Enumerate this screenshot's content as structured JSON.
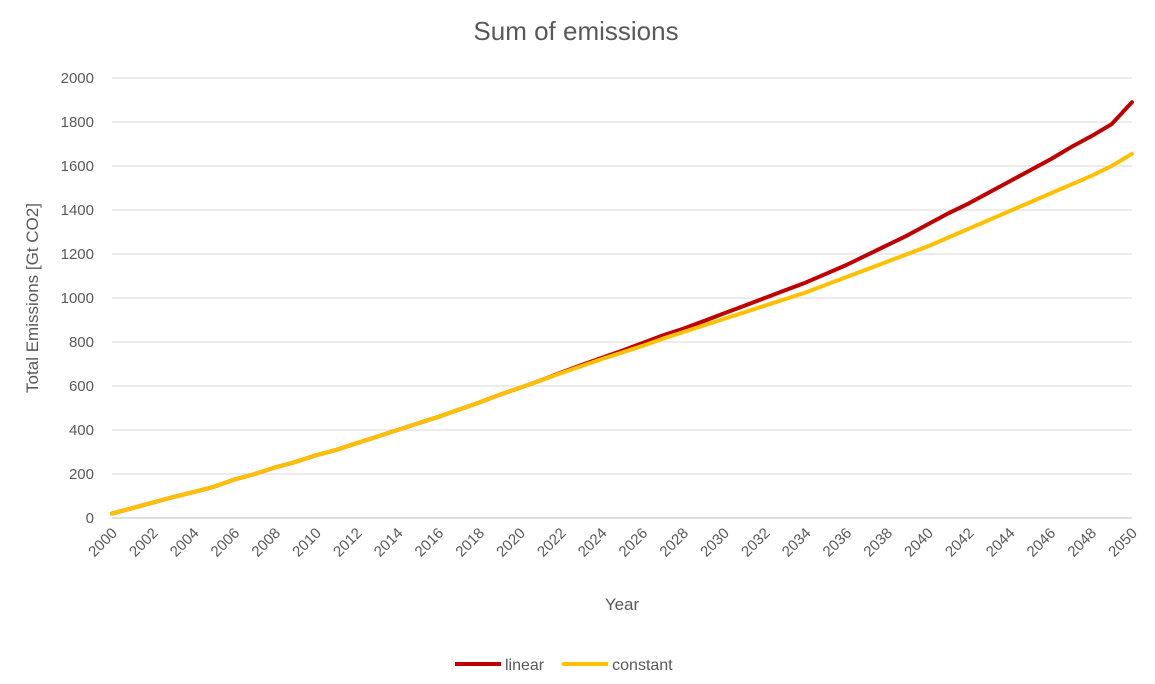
{
  "chart_data": {
    "type": "line",
    "title": "Sum of emissions",
    "xlabel": "Year",
    "ylabel": "Total Emissions [Gt CO2]",
    "x": [
      2000,
      2001,
      2002,
      2003,
      2004,
      2005,
      2006,
      2007,
      2008,
      2009,
      2010,
      2011,
      2012,
      2013,
      2014,
      2015,
      2016,
      2017,
      2018,
      2019,
      2020,
      2021,
      2022,
      2023,
      2024,
      2025,
      2026,
      2027,
      2028,
      2029,
      2030,
      2031,
      2032,
      2033,
      2034,
      2035,
      2036,
      2037,
      2038,
      2039,
      2040,
      2041,
      2042,
      2043,
      2044,
      2045,
      2046,
      2047,
      2048,
      2049,
      2050
    ],
    "x_ticks": [
      2000,
      2002,
      2004,
      2006,
      2008,
      2010,
      2012,
      2014,
      2016,
      2018,
      2020,
      2022,
      2024,
      2026,
      2028,
      2030,
      2032,
      2034,
      2036,
      2038,
      2040,
      2042,
      2044,
      2046,
      2048,
      2050
    ],
    "ylim": [
      0,
      2000
    ],
    "y_ticks": [
      0,
      200,
      400,
      600,
      800,
      1000,
      1200,
      1400,
      1600,
      1800,
      2000
    ],
    "grid": true,
    "legend_position": "bottom",
    "series": [
      {
        "name": "linear",
        "color": "#c00000",
        "values": [
          20,
          45,
          70,
          95,
          118,
          142,
          175,
          200,
          230,
          255,
          285,
          310,
          340,
          370,
          400,
          430,
          460,
          492,
          525,
          560,
          592,
          625,
          660,
          695,
          728,
          760,
          795,
          830,
          860,
          895,
          930,
          965,
          1000,
          1035,
          1070,
          1110,
          1150,
          1195,
          1240,
          1285,
          1335,
          1385,
          1430,
          1480,
          1530,
          1580,
          1630,
          1685,
          1735,
          1790,
          1890
        ]
      },
      {
        "name": "constant",
        "color": "#ffc000",
        "values": [
          20,
          45,
          70,
          95,
          118,
          142,
          175,
          200,
          230,
          255,
          285,
          310,
          340,
          370,
          400,
          430,
          460,
          492,
          525,
          560,
          592,
          625,
          658,
          690,
          722,
          752,
          782,
          815,
          845,
          875,
          905,
          935,
          965,
          995,
          1025,
          1060,
          1095,
          1130,
          1165,
          1200,
          1235,
          1275,
          1315,
          1355,
          1395,
          1435,
          1475,
          1515,
          1555,
          1600,
          1655
        ]
      }
    ]
  }
}
